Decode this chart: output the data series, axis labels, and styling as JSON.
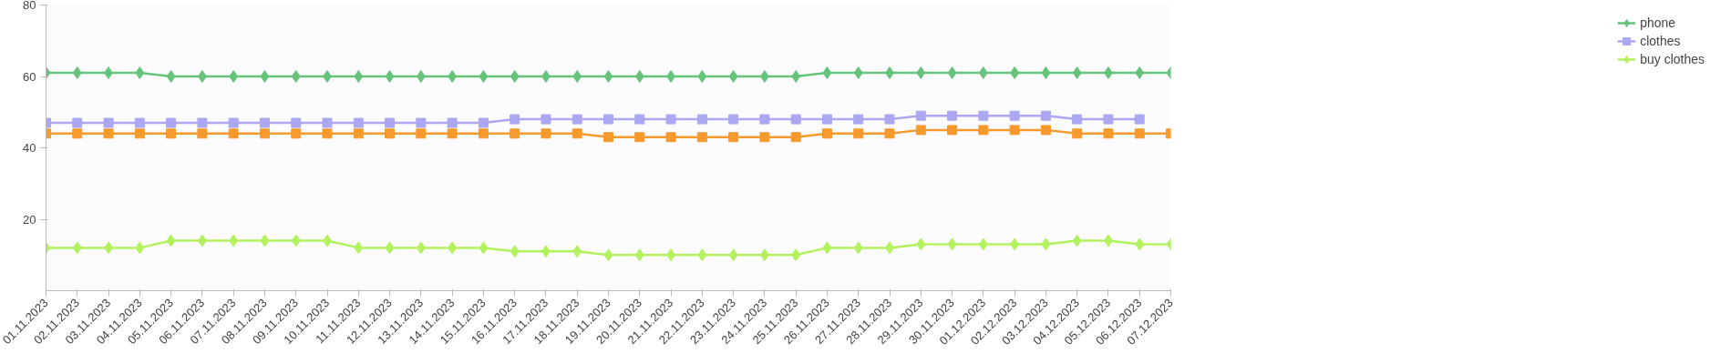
{
  "chart_data": {
    "type": "line",
    "categories": [
      "01.11.2023",
      "02.11.2023",
      "03.11.2023",
      "04.11.2023",
      "05.11.2023",
      "06.11.2023",
      "07.11.2023",
      "08.11.2023",
      "09.11.2023",
      "10.11.2023",
      "11.11.2023",
      "12.11.2023",
      "13.11.2023",
      "14.11.2023",
      "15.11.2023",
      "16.11.2023",
      "17.11.2023",
      "18.11.2023",
      "19.11.2023",
      "20.11.2023",
      "21.11.2023",
      "22.11.2023",
      "23.11.2023",
      "24.11.2023",
      "25.11.2023",
      "26.11.2023",
      "27.11.2023",
      "28.11.2023",
      "29.11.2023",
      "30.11.2023",
      "01.12.2023",
      "02.12.2023",
      "03.12.2023",
      "04.12.2023",
      "05.12.2023",
      "06.12.2023",
      "07.12.2023"
    ],
    "series": [
      {
        "color": "#f79a2e",
        "marker": "square",
        "values": [
          44,
          44,
          44,
          44,
          44,
          44,
          44,
          44,
          44,
          44,
          44,
          44,
          44,
          44,
          44,
          44,
          44,
          44,
          43,
          43,
          43,
          43,
          43,
          43,
          43,
          44,
          44,
          44,
          45,
          45,
          45,
          45,
          45,
          44,
          44,
          44,
          44
        ]
      },
      {
        "name": "phone",
        "color": "#66c47a",
        "marker": "diamond",
        "values": [
          61,
          61,
          61,
          61,
          60,
          60,
          60,
          60,
          60,
          60,
          60,
          60,
          60,
          60,
          60,
          60,
          60,
          60,
          60,
          60,
          60,
          60,
          60,
          60,
          60,
          61,
          61,
          61,
          61,
          61,
          61,
          61,
          61,
          61,
          61,
          61,
          61
        ]
      },
      {
        "name": "clothes",
        "color": "#aba7f2",
        "marker": "square",
        "values": [
          47,
          47,
          47,
          47,
          47,
          47,
          47,
          47,
          47,
          47,
          47,
          47,
          47,
          47,
          47,
          48,
          48,
          48,
          48,
          48,
          48,
          48,
          48,
          48,
          48,
          48,
          48,
          48,
          49,
          49,
          49,
          49,
          49,
          48,
          48,
          48,
          null
        ]
      },
      {
        "name": "buy clothes",
        "color": "#b2f25c",
        "marker": "diamond",
        "values": [
          12,
          12,
          12,
          12,
          14,
          14,
          14,
          14,
          14,
          14,
          12,
          12,
          12,
          12,
          12,
          11,
          11,
          11,
          10,
          10,
          10,
          10,
          10,
          10,
          10,
          12,
          12,
          12,
          13,
          13,
          13,
          13,
          13,
          14,
          14,
          13,
          13
        ]
      }
    ],
    "ylim": [
      0,
      80
    ],
    "yticks": [
      20,
      40,
      60,
      80
    ],
    "grid": false,
    "legend": "right",
    "line_style": "solid"
  }
}
